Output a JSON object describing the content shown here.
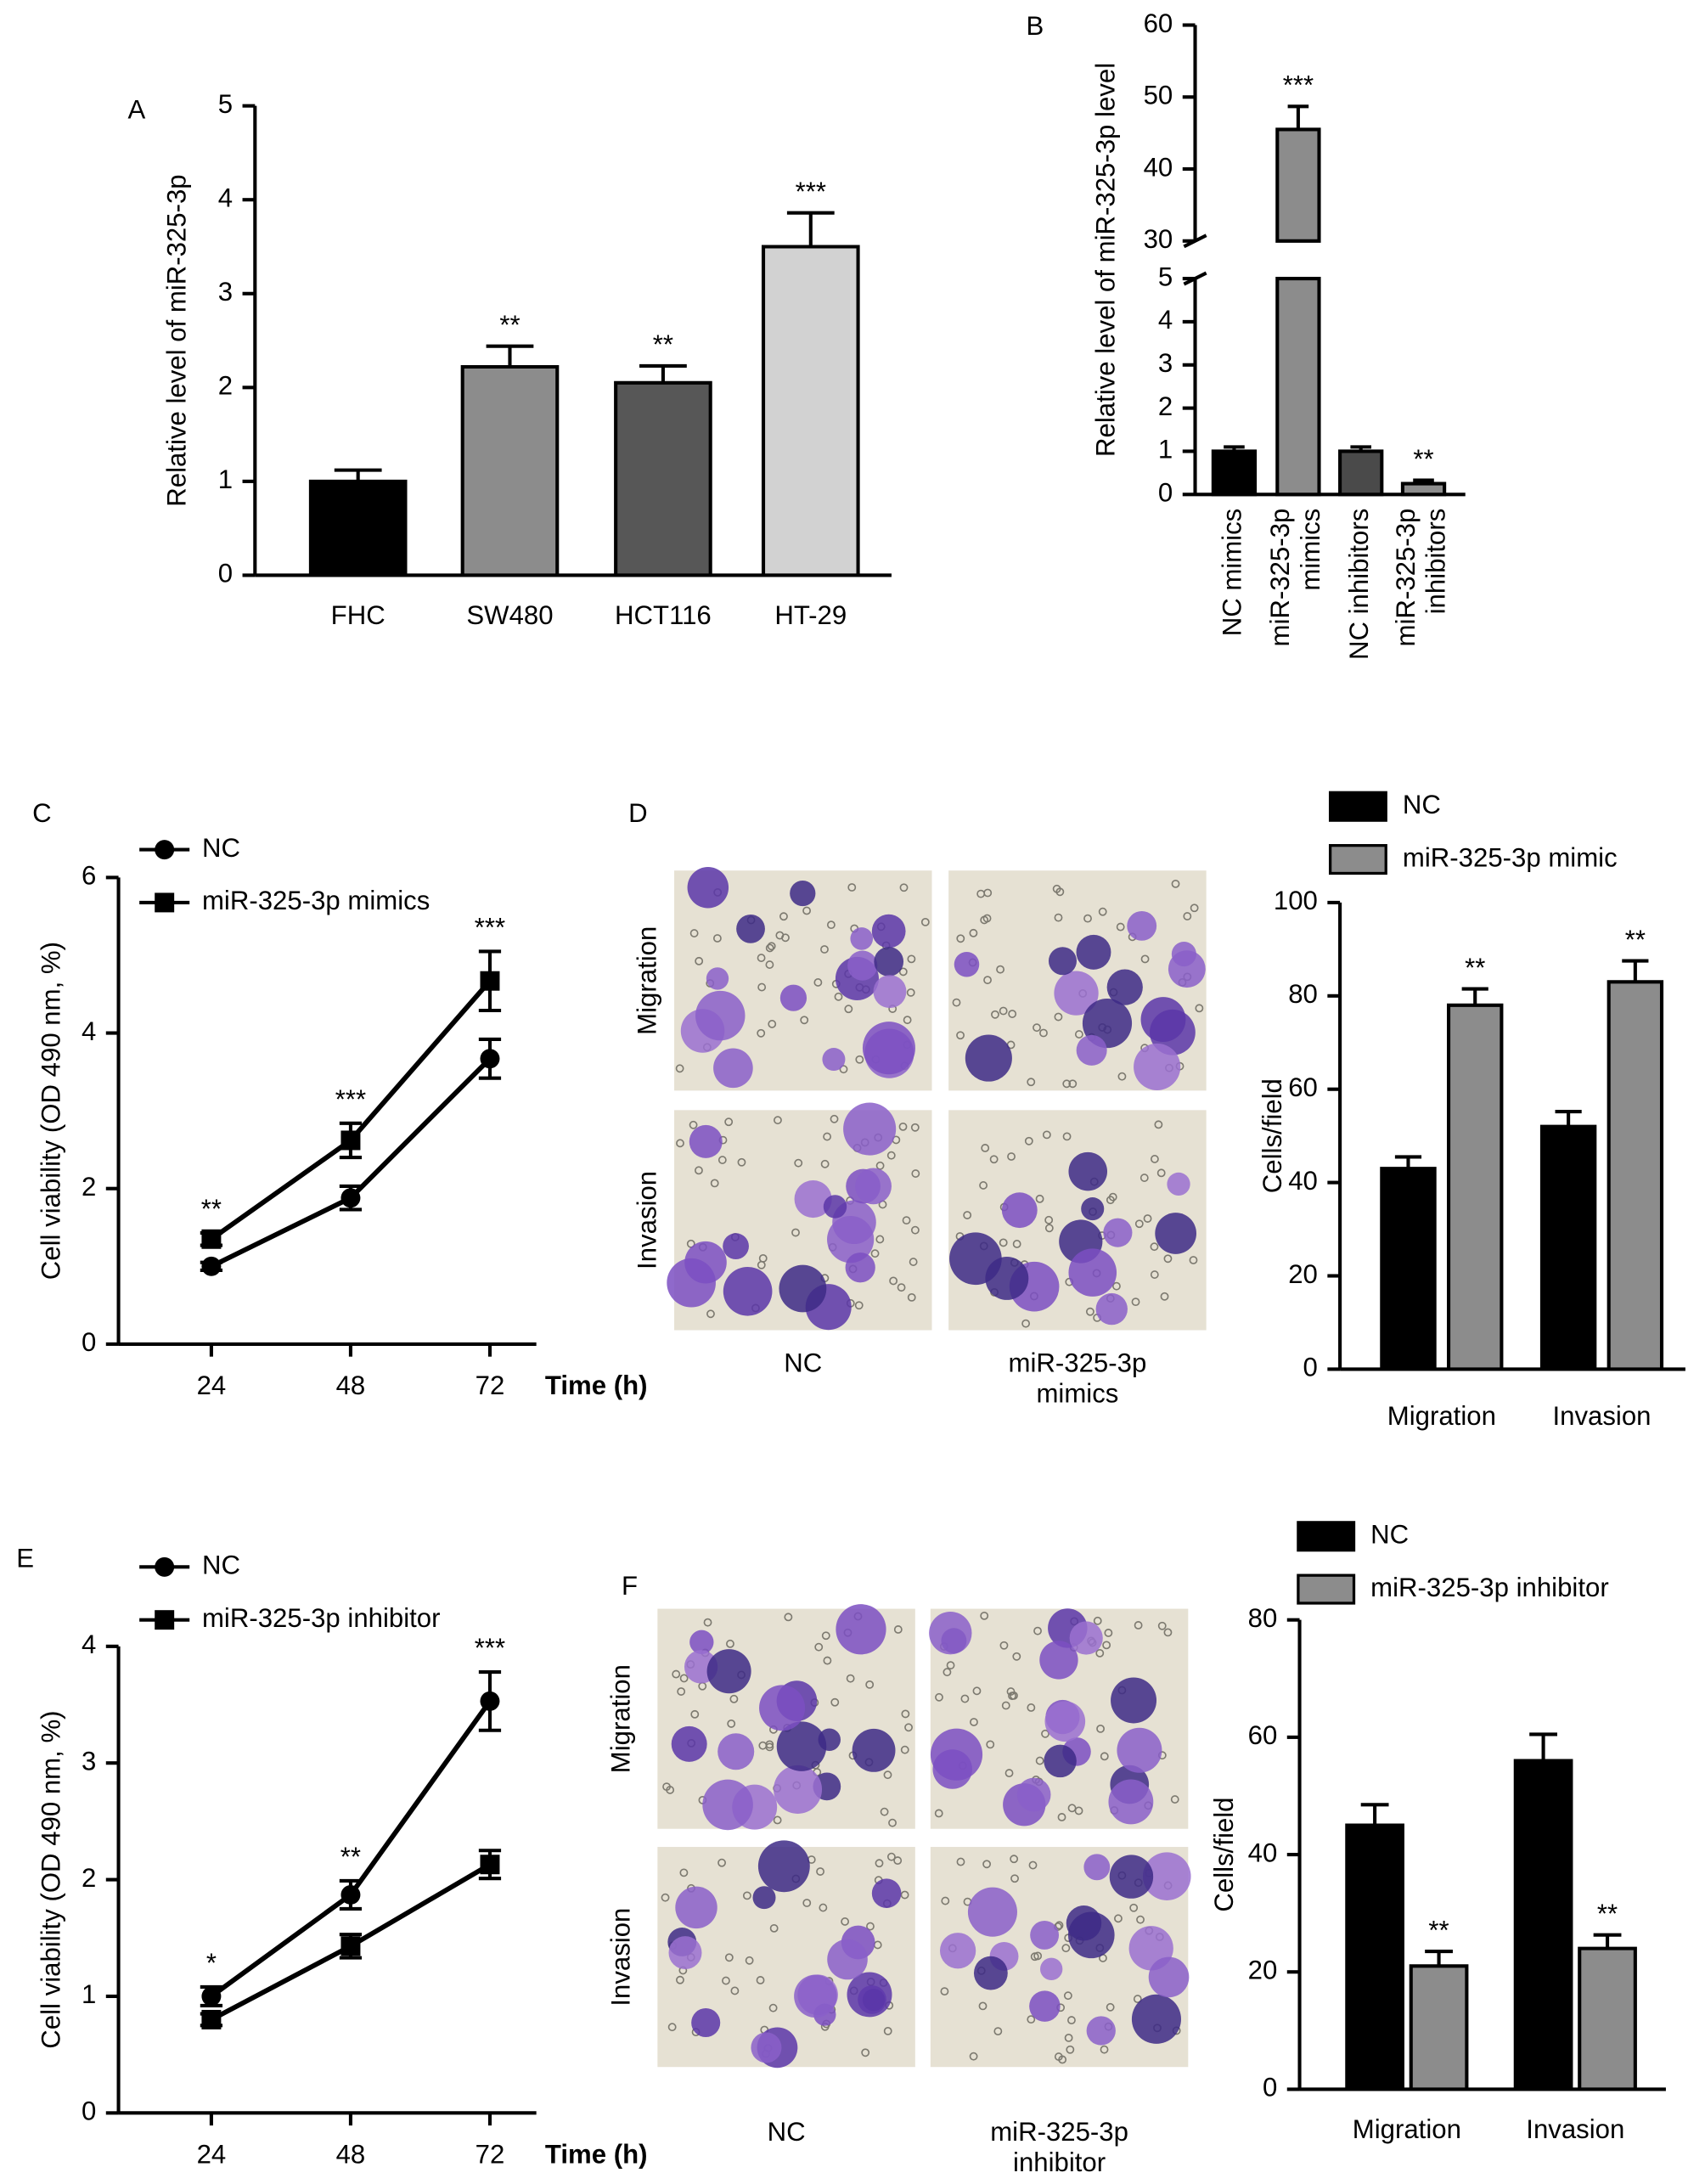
{
  "chart_data": [
    {
      "panel": "A",
      "type": "bar",
      "y_label": "Relative level of miR-325-3p",
      "categories": [
        "FHC",
        "SW480",
        "HCT116",
        "HT-29"
      ],
      "series": [
        {
          "colors": [
            "#000000",
            "#8c8c8c",
            "#575757",
            "#d2d2d2"
          ],
          "values": [
            1.0,
            2.22,
            2.05,
            3.5
          ],
          "errors": [
            0.12,
            0.22,
            0.18,
            0.36
          ],
          "annotations": [
            null,
            "**",
            "**",
            "***"
          ]
        }
      ],
      "ylim": [
        0,
        5
      ],
      "yticks": [
        0,
        1,
        2,
        3,
        4,
        5
      ]
    },
    {
      "panel": "B",
      "type": "bar",
      "y_label": "Relative level of miR-325-3p level",
      "categories": [
        "NC mimics",
        "miR-325-3p mimics",
        "NC inhibitors",
        "miR-325-3p inhibitors"
      ],
      "series": [
        {
          "colors": [
            "#000000",
            "#8c8c8c",
            "#4a4a4a",
            "#8c8c8c"
          ],
          "values": [
            1.0,
            45.5,
            1.0,
            0.25
          ],
          "errors": [
            0.1,
            3.2,
            0.1,
            0.08
          ],
          "annotations": [
            null,
            "***",
            null,
            "**"
          ]
        }
      ],
      "ylim": [
        0,
        60
      ],
      "axis_break": [
        5,
        30
      ],
      "yticks": [
        0,
        1,
        2,
        3,
        4,
        5,
        30,
        40,
        50,
        60
      ]
    },
    {
      "panel": "C",
      "type": "line",
      "x_label": "Time (h)",
      "y_label": "Cell viability (OD 490 nm, %)",
      "x": [
        24,
        48,
        72
      ],
      "xlim": [
        8,
        80
      ],
      "xticks": [
        24,
        48,
        72
      ],
      "series": [
        {
          "name": "NC",
          "marker": "circle",
          "color": "#000000",
          "values": [
            1.0,
            1.88,
            3.67
          ],
          "errors": [
            0.05,
            0.15,
            0.25
          ]
        },
        {
          "name": "miR-325-3p mimics",
          "marker": "square",
          "color": "#000000",
          "values": [
            1.35,
            2.62,
            4.67
          ],
          "errors": [
            0.08,
            0.22,
            0.38
          ],
          "annotations": [
            "**",
            "***",
            "***"
          ]
        }
      ],
      "ylim": [
        0,
        6
      ],
      "yticks": [
        0,
        2,
        4,
        6
      ]
    },
    {
      "panel": "D",
      "type": "bar",
      "images": {
        "rows": [
          "Migration",
          "Invasion"
        ],
        "columns": [
          "NC",
          "miR-325-3p mimics"
        ]
      },
      "y_label": "Cells/field",
      "categories": [
        "Migration",
        "Invasion"
      ],
      "series": [
        {
          "name": "NC",
          "color": "#000000",
          "values": [
            43,
            52
          ],
          "errors": [
            2.5,
            3.2
          ]
        },
        {
          "name": "miR-325-3p mimic",
          "color": "#8c8c8c",
          "values": [
            78,
            83
          ],
          "errors": [
            3.5,
            4.5
          ],
          "annotations": [
            "**",
            "**"
          ]
        }
      ],
      "ylim": [
        0,
        100
      ],
      "yticks": [
        0,
        20,
        40,
        60,
        80,
        100
      ]
    },
    {
      "panel": "E",
      "type": "line",
      "x_label": "Time (h)",
      "y_label": "Cell viability (OD 490 nm, %)",
      "x": [
        24,
        48,
        72
      ],
      "xlim": [
        8,
        80
      ],
      "xticks": [
        24,
        48,
        72
      ],
      "series": [
        {
          "name": "NC",
          "marker": "circle",
          "color": "#000000",
          "values": [
            1.0,
            1.87,
            3.53
          ],
          "errors": [
            0.08,
            0.12,
            0.25
          ],
          "annotations": [
            "*",
            "**",
            "***"
          ]
        },
        {
          "name": "miR-325-3p inhibitor",
          "marker": "square",
          "color": "#000000",
          "values": [
            0.8,
            1.43,
            2.13
          ],
          "errors": [
            0.05,
            0.1,
            0.12
          ]
        }
      ],
      "ylim": [
        0,
        4
      ],
      "yticks": [
        0,
        1,
        2,
        3,
        4
      ]
    },
    {
      "panel": "F",
      "type": "bar",
      "images": {
        "rows": [
          "Migration",
          "Invasion"
        ],
        "columns": [
          "NC",
          "miR-325-3p inhibitor"
        ]
      },
      "y_label": "Cells/field",
      "categories": [
        "Migration",
        "Invasion"
      ],
      "series": [
        {
          "name": "NC",
          "color": "#000000",
          "values": [
            45,
            56
          ],
          "errors": [
            3.5,
            4.5
          ]
        },
        {
          "name": "miR-325-3p inhibitor",
          "color": "#8c8c8c",
          "values": [
            21,
            24
          ],
          "errors": [
            2.5,
            2.3
          ],
          "annotations": [
            "**",
            "**"
          ]
        }
      ],
      "ylim": [
        0,
        80
      ],
      "yticks": [
        0,
        20,
        40,
        60,
        80
      ]
    }
  ]
}
